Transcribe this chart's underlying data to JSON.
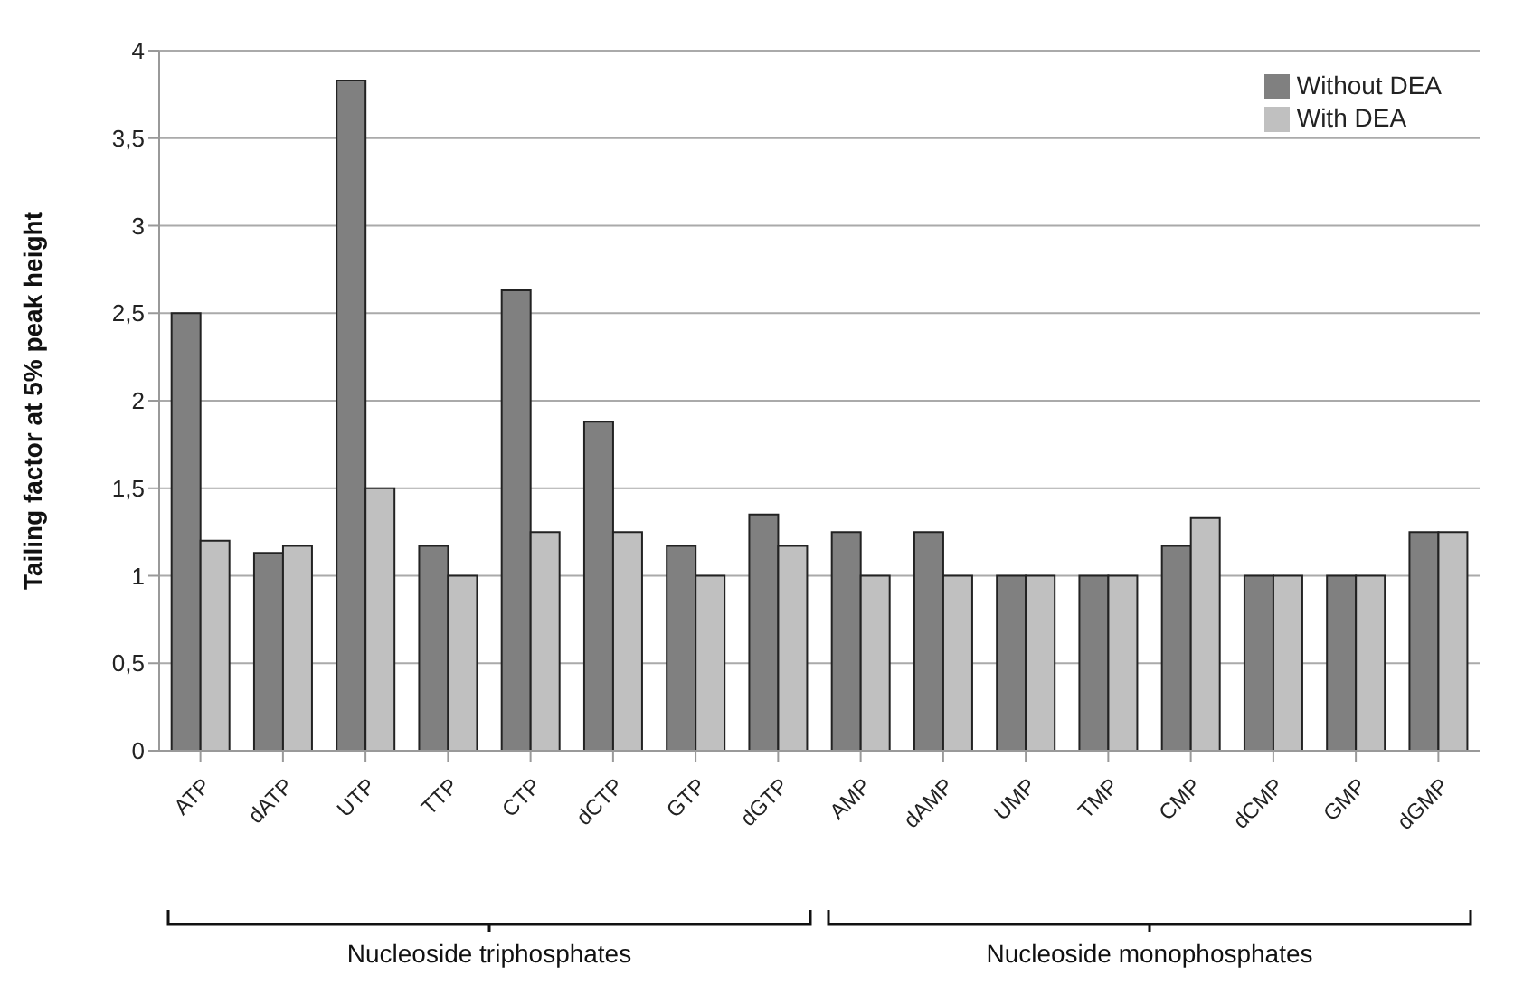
{
  "chart_data": {
    "type": "bar",
    "ylabel": "Tailing factor at 5% peak height",
    "categories": [
      "ATP",
      "dATP",
      "UTP",
      "TTP",
      "CTP",
      "dCTP",
      "GTP",
      "dGTP",
      "AMP",
      "dAMP",
      "UMP",
      "TMP",
      "CMP",
      "dCMP",
      "GMP",
      "dGMP"
    ],
    "series": [
      {
        "name": "Without DEA",
        "color": "#808080",
        "values": [
          2.5,
          1.13,
          3.83,
          1.17,
          2.63,
          1.88,
          1.17,
          1.35,
          1.25,
          1.25,
          1,
          1,
          1.17,
          1,
          1,
          1.25
        ]
      },
      {
        "name": "With DEA",
        "color": "#c0c0c0",
        "values": [
          1.2,
          1.17,
          1.5,
          1,
          1.25,
          1.25,
          1,
          1.17,
          1,
          1,
          1,
          1,
          1.33,
          1,
          1,
          1.25
        ]
      }
    ],
    "ylim": [
      0,
      4
    ],
    "yticks": [
      0,
      {
        "value": 0.5,
        "label": "0,5"
      },
      1,
      {
        "value": 1.5,
        "label": "1,5"
      },
      2,
      {
        "value": 2.5,
        "label": "2,5"
      },
      3,
      {
        "value": 3.5,
        "label": "3,5"
      },
      4
    ],
    "grid": "y",
    "legend": "top right",
    "annotations": [
      "Nucleoside triphosphates",
      "Nucleoside monophosphates"
    ]
  }
}
